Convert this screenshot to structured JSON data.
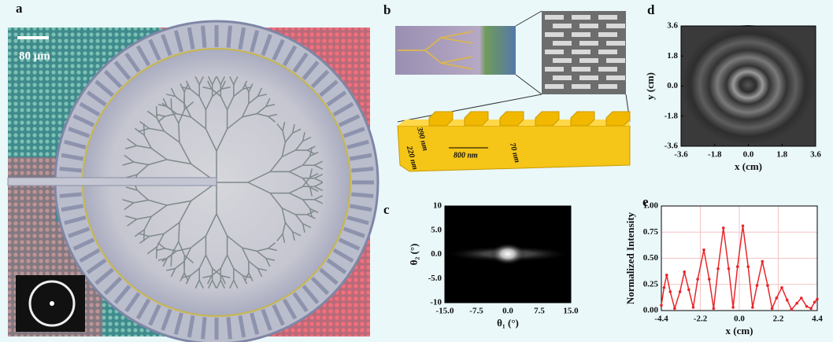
{
  "panel_labels": [
    "a",
    "b",
    "c",
    "d",
    "e"
  ],
  "scale_bar": "80 μm",
  "schematic_labels": [
    "390 nm",
    "220 nm",
    "800 nm",
    "70 nm"
  ],
  "chart_data": [
    {
      "type": "heatmap",
      "x_label": "θ₁ (°)",
      "y_label": "θ₂ (°)",
      "xlim": [
        -15,
        15
      ],
      "xticks": [
        {
          "value": -15,
          "label": "-15.0"
        },
        -7.5,
        {
          "value": 0,
          "label": "0.0"
        },
        7.5,
        {
          "value": 15,
          "label": "15.0"
        }
      ],
      "ylim": [
        -10,
        10
      ],
      "yticks": [
        -10,
        {
          "value": -5,
          "label": "-5.0"
        },
        {
          "value": 0,
          "label": "0.0"
        },
        {
          "value": 5,
          "label": "5.0"
        },
        10
      ]
    },
    {
      "type": "heatmap",
      "x_label": "x (cm)",
      "y_label": "y (cm)",
      "xlim": [
        -3.6,
        3.6
      ],
      "xticks": [
        -3.6,
        -1.8,
        {
          "value": 0,
          "label": "0.0"
        },
        1.8,
        3.6
      ],
      "ylim": [
        -3.6,
        3.6
      ],
      "yticks": [
        -3.6,
        -1.8,
        {
          "value": 0,
          "label": "0.0"
        },
        1.8,
        3.6
      ]
    },
    {
      "type": "line",
      "x_label": "x (cm)",
      "y_label": "Normalized Intensity",
      "color": "#e8262a",
      "grid": true,
      "xlim": [
        -4.4,
        4.4
      ],
      "xticks": [
        -4.4,
        -2.2,
        {
          "value": 0,
          "label": "0.0"
        },
        2.2,
        4.4
      ],
      "ylim": [
        0,
        1
      ],
      "yticks": [
        {
          "value": 0,
          "label": "0.00"
        },
        0.25,
        {
          "value": 0.5,
          "label": "0.50"
        },
        0.75,
        {
          "value": 1,
          "label": "1.00"
        }
      ],
      "x": [
        -4.4,
        -4.25,
        -4.1,
        -3.9,
        -3.65,
        -3.35,
        -3.1,
        -2.85,
        -2.6,
        -2.35,
        -2.0,
        -1.7,
        -1.45,
        -1.2,
        -0.9,
        -0.6,
        -0.35,
        -0.1,
        0.2,
        0.5,
        0.75,
        1.0,
        1.3,
        1.6,
        1.85,
        2.1,
        2.4,
        2.7,
        2.95,
        3.25,
        3.5,
        3.8,
        4.05,
        4.25,
        4.4
      ],
      "values": [
        0.05,
        0.22,
        0.34,
        0.18,
        0.02,
        0.18,
        0.37,
        0.2,
        0.03,
        0.3,
        0.58,
        0.3,
        0.02,
        0.4,
        0.79,
        0.4,
        0.03,
        0.42,
        0.81,
        0.42,
        0.03,
        0.24,
        0.47,
        0.24,
        0.02,
        0.12,
        0.22,
        0.1,
        0.01,
        0.07,
        0.12,
        0.04,
        0.02,
        0.08,
        0.11
      ]
    }
  ]
}
